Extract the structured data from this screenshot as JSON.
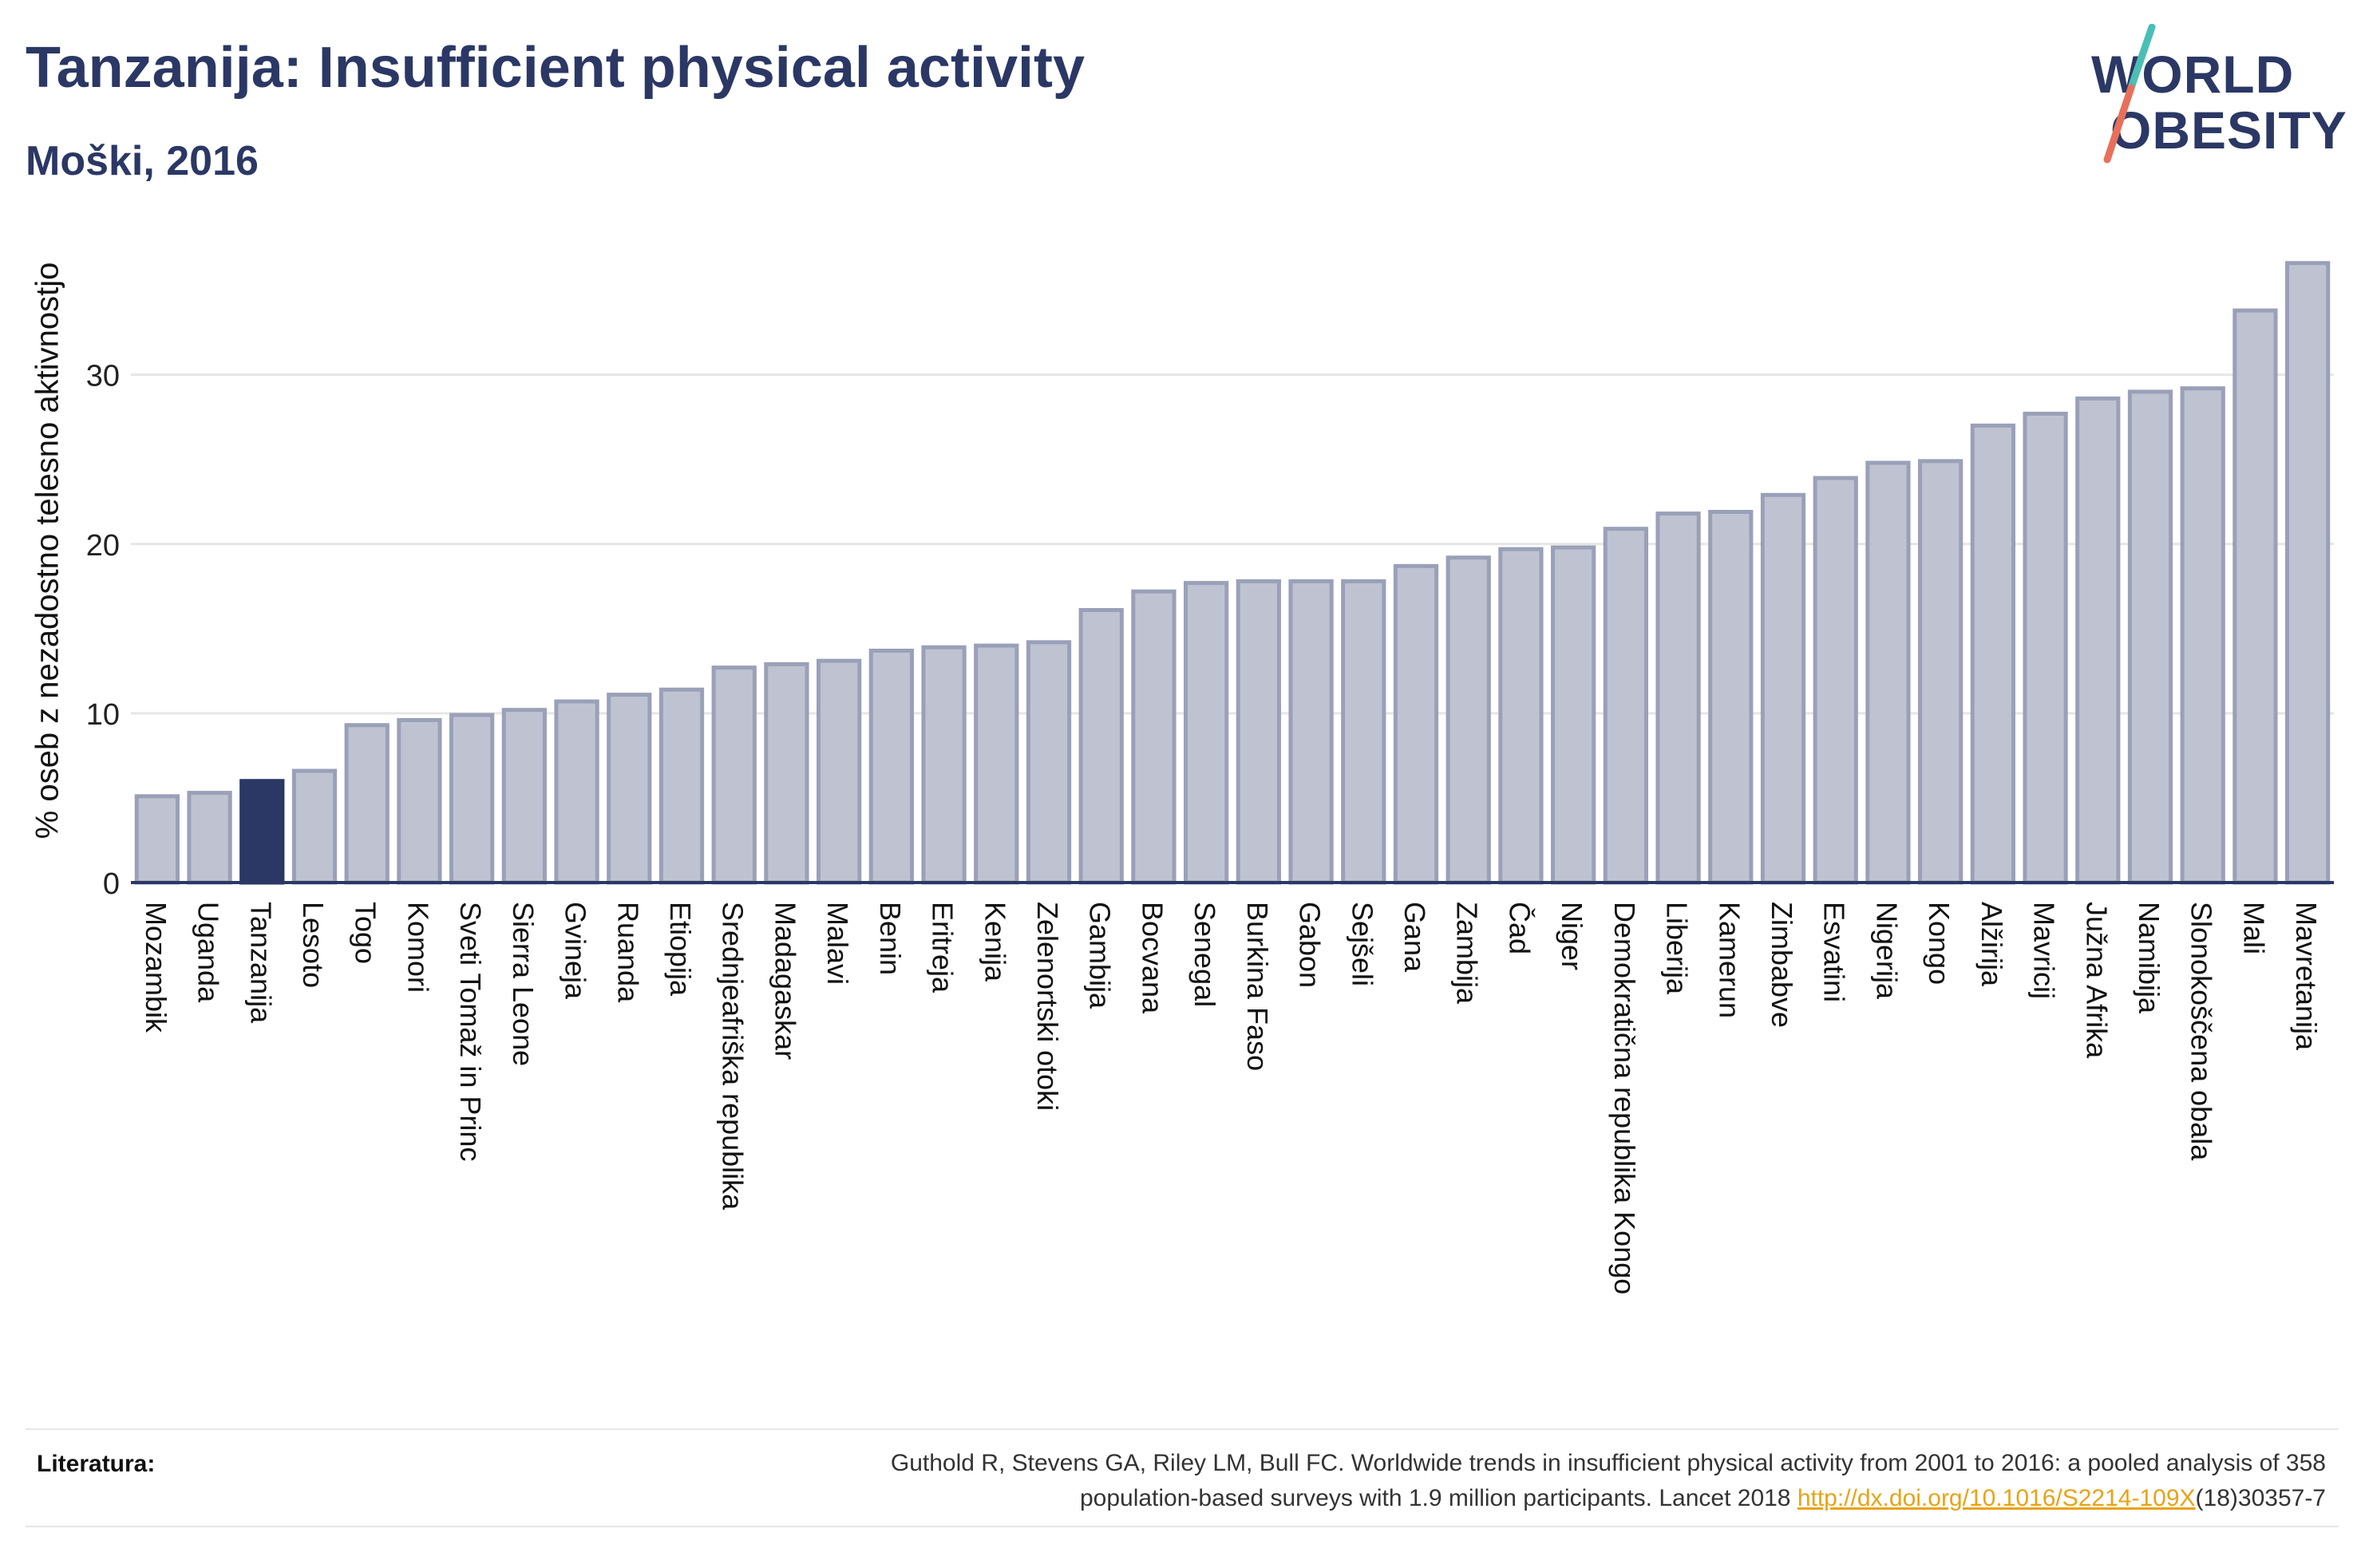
{
  "title": "Tanzanija: Insufficient physical activity",
  "subtitle": "Moški, 2016",
  "logo": {
    "line1": "WORLD",
    "line2": "OBESITY",
    "slash_colors": [
      "#4bbfb5",
      "#e8705a"
    ]
  },
  "colors": {
    "bar": "#bfc3d1",
    "bar_stroke": "#9aa0b8",
    "highlight": "#2b3865",
    "axis": "#2b3865",
    "grid": "#e6e6e6",
    "link": "#e8a317"
  },
  "chart_data": {
    "type": "bar",
    "ylabel": "% oseb z nezadostno telesno aktivnostjo",
    "ylim": [
      0,
      38
    ],
    "yticks": [
      0,
      10,
      20,
      30
    ],
    "grid": true,
    "highlight": "Tanzanija",
    "categories": [
      "Mozambik",
      "Uganda",
      "Tanzanija",
      "Lesoto",
      "Togo",
      "Komori",
      "Sveti Tomaž in Princ",
      "Sierra Leone",
      "Gvineja",
      "Ruanda",
      "Etiopija",
      "Srednjeafriška republika",
      "Madagaskar",
      "Malavi",
      "Benin",
      "Eritreja",
      "Kenija",
      "Zelenortski otoki",
      "Gambija",
      "Bocvana",
      "Senegal",
      "Burkina Faso",
      "Gabon",
      "Sejšeli",
      "Gana",
      "Zambija",
      "Čad",
      "Niger",
      "Demokratična republika Kongo",
      "Liberija",
      "Kamerun",
      "Zimbabve",
      "Esvatini",
      "Nigerija",
      "Kongo",
      "Alžirija",
      "Mavricij",
      "Južna Afrika",
      "Namibija",
      "Slonokoščena obala",
      "Mali",
      "Mavretanija"
    ],
    "values": [
      5.1,
      5.3,
      6.0,
      6.6,
      9.3,
      9.6,
      9.9,
      10.2,
      10.7,
      11.1,
      11.4,
      12.7,
      12.9,
      13.1,
      13.7,
      13.9,
      14.0,
      14.2,
      16.1,
      17.2,
      17.7,
      17.8,
      17.8,
      17.8,
      18.7,
      19.2,
      19.7,
      19.8,
      20.9,
      21.8,
      21.9,
      22.9,
      23.9,
      24.8,
      24.9,
      27.0,
      27.7,
      28.6,
      29.0,
      29.2,
      33.8,
      36.6
    ]
  },
  "references": {
    "label": "Literatura:",
    "text_part1": "Guthold R, Stevens GA, Riley LM, Bull FC. Worldwide trends in insufficient physical activity from 2001 to 2016: a pooled analysis of 358",
    "text_part2": "population-based surveys with 1.9 million participants. Lancet 2018 ",
    "link": "http://dx.doi.org/10.1016/S2214-109X",
    "text_part3": "(18)30357-7"
  }
}
